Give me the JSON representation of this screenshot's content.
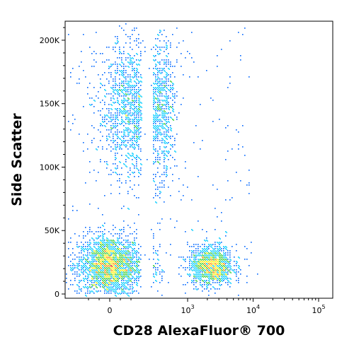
{
  "chart_data": {
    "type": "scatter",
    "style": "density dot plot (flow cytometry)",
    "xlabel": "CD28 AlexaFluor® 700",
    "ylabel": "Side Scatter",
    "x_scale": "biexponential",
    "xlim": [
      -300,
      150000
    ],
    "ylim": [
      0,
      215000
    ],
    "x_ticks": [
      {
        "value": 0,
        "label": "0"
      },
      {
        "value": 1000,
        "label": "10",
        "exp": "3"
      },
      {
        "value": 10000,
        "label": "10",
        "exp": "4"
      },
      {
        "value": 100000,
        "label": "10",
        "exp": "5"
      }
    ],
    "y_ticks": [
      {
        "value": 0,
        "label": "0"
      },
      {
        "value": 50000,
        "label": "50K"
      },
      {
        "value": 100000,
        "label": "100K"
      },
      {
        "value": 150000,
        "label": "150K"
      },
      {
        "value": 200000,
        "label": "200K"
      }
    ],
    "populations": [
      {
        "x_center": 0,
        "y_center": 22000,
        "x_spread": 150,
        "y_spread": 12000,
        "weight": 0.42
      },
      {
        "x_center": 2300,
        "y_center": 22000,
        "x_spread_log": 0.17,
        "y_spread": 8000,
        "weight": 0.22
      },
      {
        "x_center": 250,
        "y_center": 145000,
        "x_spread": 180,
        "y_spread": 28000,
        "weight": 0.3
      }
    ],
    "density_colors": [
      "#0000cc",
      "#0066ff",
      "#00ccff",
      "#33cc33",
      "#ffee00",
      "#ff8800",
      "#dd0000"
    ],
    "grid": false,
    "legend": "none"
  }
}
